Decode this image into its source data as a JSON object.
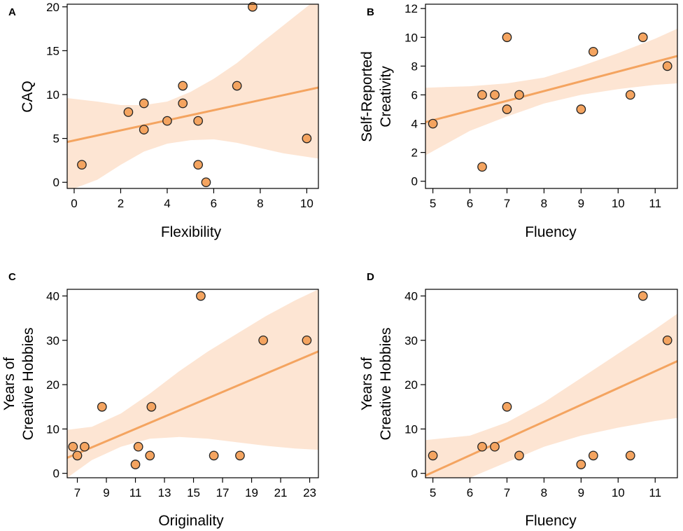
{
  "figure": {
    "accent_color": "#f4a460",
    "band_color": "#fde5d3",
    "point_fill": "#f4a460",
    "point_stroke": "#222222"
  },
  "chart_data": [
    {
      "panel": "A",
      "type": "scatter",
      "xlabel": "Flexibility",
      "ylabel": [
        "CAQ"
      ],
      "xlim": [
        -0.3,
        10.5
      ],
      "ylim": [
        -0.7,
        20.3
      ],
      "xticks": [
        0,
        2,
        4,
        6,
        8,
        10
      ],
      "xtick_labels": [
        "0",
        "2",
        "4",
        "6",
        "8",
        "10"
      ],
      "yticks": [
        0,
        5,
        10,
        15,
        20
      ],
      "ytick_labels": [
        "0",
        "5",
        "10",
        "15",
        "20"
      ],
      "points": [
        {
          "x": 0.33,
          "y": 2
        },
        {
          "x": 2.33,
          "y": 8
        },
        {
          "x": 3.0,
          "y": 9
        },
        {
          "x": 3.0,
          "y": 6
        },
        {
          "x": 4.0,
          "y": 7
        },
        {
          "x": 4.67,
          "y": 11
        },
        {
          "x": 4.67,
          "y": 9
        },
        {
          "x": 5.33,
          "y": 7
        },
        {
          "x": 5.33,
          "y": 2
        },
        {
          "x": 5.67,
          "y": 0
        },
        {
          "x": 7.0,
          "y": 11
        },
        {
          "x": 7.67,
          "y": 20
        },
        {
          "x": 10.0,
          "y": 5
        }
      ],
      "regression": {
        "x": [
          -0.3,
          10.5
        ],
        "y": [
          4.6,
          10.8
        ]
      },
      "ci_band": [
        {
          "x": -0.3,
          "lo": -1.0,
          "hi": 9.6
        },
        {
          "x": 1.0,
          "lo": 0.3,
          "hi": 9.2
        },
        {
          "x": 2.0,
          "lo": 2.0,
          "hi": 8.8
        },
        {
          "x": 3.0,
          "lo": 3.5,
          "hi": 8.8
        },
        {
          "x": 4.0,
          "lo": 4.4,
          "hi": 9.2
        },
        {
          "x": 5.0,
          "lo": 4.8,
          "hi": 10.3
        },
        {
          "x": 6.0,
          "lo": 4.9,
          "hi": 11.8
        },
        {
          "x": 7.0,
          "lo": 4.5,
          "hi": 13.6
        },
        {
          "x": 8.0,
          "lo": 3.9,
          "hi": 15.8
        },
        {
          "x": 9.0,
          "lo": 3.3,
          "hi": 17.9
        },
        {
          "x": 10.0,
          "lo": 2.9,
          "hi": 20.0
        },
        {
          "x": 10.5,
          "lo": 2.7,
          "hi": 21.0
        }
      ]
    },
    {
      "panel": "B",
      "type": "scatter",
      "xlabel": "Fluency",
      "ylabel": [
        "Self-Reported",
        "Creativity"
      ],
      "xlim": [
        4.8,
        11.6
      ],
      "ylim": [
        -0.5,
        12.3
      ],
      "xticks": [
        5,
        6,
        7,
        8,
        9,
        10,
        11
      ],
      "xtick_labels": [
        "5",
        "6",
        "7",
        "8",
        "9",
        "10",
        "11"
      ],
      "yticks": [
        0,
        2,
        4,
        6,
        8,
        10,
        12
      ],
      "ytick_labels": [
        "0",
        "2",
        "4",
        "6",
        "8",
        "10",
        "12"
      ],
      "points": [
        {
          "x": 5.0,
          "y": 4
        },
        {
          "x": 6.33,
          "y": 6
        },
        {
          "x": 6.33,
          "y": 1
        },
        {
          "x": 6.67,
          "y": 6
        },
        {
          "x": 7.0,
          "y": 10
        },
        {
          "x": 7.0,
          "y": 5
        },
        {
          "x": 7.33,
          "y": 6
        },
        {
          "x": 9.0,
          "y": 5
        },
        {
          "x": 9.33,
          "y": 9
        },
        {
          "x": 10.33,
          "y": 6
        },
        {
          "x": 10.67,
          "y": 10
        },
        {
          "x": 11.33,
          "y": 8
        }
      ],
      "regression": {
        "x": [
          4.8,
          11.6
        ],
        "y": [
          4.1,
          8.7
        ]
      },
      "ci_band": [
        {
          "x": 4.8,
          "lo": 1.8,
          "hi": 6.5
        },
        {
          "x": 6.0,
          "lo": 3.5,
          "hi": 6.6
        },
        {
          "x": 7.0,
          "lo": 4.5,
          "hi": 6.8
        },
        {
          "x": 8.0,
          "lo": 5.4,
          "hi": 7.2
        },
        {
          "x": 9.0,
          "lo": 6.0,
          "hi": 8.0
        },
        {
          "x": 10.0,
          "lo": 6.4,
          "hi": 8.9
        },
        {
          "x": 11.0,
          "lo": 6.7,
          "hi": 9.9
        },
        {
          "x": 11.6,
          "lo": 6.8,
          "hi": 10.6
        }
      ]
    },
    {
      "panel": "C",
      "type": "scatter",
      "xlabel": "Originality",
      "ylabel": [
        "Years of",
        "Creative Hobbies"
      ],
      "xlim": [
        6.3,
        23.6
      ],
      "ylim": [
        -1,
        41.5
      ],
      "xticks": [
        7,
        9,
        11,
        13,
        15,
        17,
        19,
        21,
        23
      ],
      "xtick_labels": [
        "7",
        "9",
        "11",
        "13",
        "15",
        "17",
        "19",
        "21",
        "23"
      ],
      "yticks": [
        0,
        10,
        20,
        30,
        40
      ],
      "ytick_labels": [
        "0",
        "10",
        "20",
        "30",
        "40"
      ],
      "points": [
        {
          "x": 6.7,
          "y": 6
        },
        {
          "x": 7.0,
          "y": 4
        },
        {
          "x": 7.5,
          "y": 6
        },
        {
          "x": 8.7,
          "y": 15
        },
        {
          "x": 11.0,
          "y": 2
        },
        {
          "x": 11.2,
          "y": 6
        },
        {
          "x": 12.0,
          "y": 4
        },
        {
          "x": 12.1,
          "y": 15
        },
        {
          "x": 15.5,
          "y": 40
        },
        {
          "x": 16.4,
          "y": 4
        },
        {
          "x": 18.2,
          "y": 4
        },
        {
          "x": 19.8,
          "y": 30
        },
        {
          "x": 22.8,
          "y": 30
        }
      ],
      "regression": {
        "x": [
          6.3,
          23.6
        ],
        "y": [
          3.5,
          27.5
        ]
      },
      "ci_band": [
        {
          "x": 6.3,
          "lo": -1.0,
          "hi": 9.8
        },
        {
          "x": 8.0,
          "lo": 3.0,
          "hi": 10.5
        },
        {
          "x": 10.0,
          "lo": 6.0,
          "hi": 13.5
        },
        {
          "x": 12.0,
          "lo": 7.8,
          "hi": 18.0
        },
        {
          "x": 14.0,
          "lo": 8.2,
          "hi": 23.0
        },
        {
          "x": 16.0,
          "lo": 7.8,
          "hi": 27.5
        },
        {
          "x": 18.0,
          "lo": 7.0,
          "hi": 31.5
        },
        {
          "x": 20.0,
          "lo": 6.2,
          "hi": 35.5
        },
        {
          "x": 22.0,
          "lo": 5.6,
          "hi": 39.0
        },
        {
          "x": 23.6,
          "lo": 5.3,
          "hi": 41.5
        }
      ]
    },
    {
      "panel": "D",
      "type": "scatter",
      "xlabel": "Fluency",
      "ylabel": [
        "Years of",
        "Creative Hobbies"
      ],
      "xlim": [
        4.8,
        11.6
      ],
      "ylim": [
        -1,
        41.5
      ],
      "xticks": [
        5,
        6,
        7,
        8,
        9,
        10,
        11
      ],
      "xtick_labels": [
        "5",
        "6",
        "7",
        "8",
        "9",
        "10",
        "11"
      ],
      "yticks": [
        0,
        10,
        20,
        30,
        40
      ],
      "ytick_labels": [
        "0",
        "10",
        "20",
        "30",
        "40"
      ],
      "points": [
        {
          "x": 5.0,
          "y": 4
        },
        {
          "x": 6.33,
          "y": 6
        },
        {
          "x": 6.67,
          "y": 6
        },
        {
          "x": 7.0,
          "y": 15
        },
        {
          "x": 7.33,
          "y": 4
        },
        {
          "x": 9.0,
          "y": 2
        },
        {
          "x": 9.33,
          "y": 4
        },
        {
          "x": 10.33,
          "y": 4
        },
        {
          "x": 10.67,
          "y": 40
        },
        {
          "x": 11.33,
          "y": 30
        }
      ],
      "regression": {
        "x": [
          4.8,
          11.6
        ],
        "y": [
          -0.5,
          25.3
        ]
      },
      "ci_band": [
        {
          "x": 4.8,
          "lo": -1.0,
          "hi": 7.5
        },
        {
          "x": 6.0,
          "lo": -1.0,
          "hi": 8.5
        },
        {
          "x": 7.0,
          "lo": 2.5,
          "hi": 11.5
        },
        {
          "x": 8.0,
          "lo": 6.0,
          "hi": 16.0
        },
        {
          "x": 9.0,
          "lo": 8.5,
          "hi": 21.5
        },
        {
          "x": 10.0,
          "lo": 10.3,
          "hi": 27.0
        },
        {
          "x": 11.0,
          "lo": 11.8,
          "hi": 32.5
        },
        {
          "x": 11.6,
          "lo": 12.5,
          "hi": 36.0
        }
      ]
    }
  ]
}
